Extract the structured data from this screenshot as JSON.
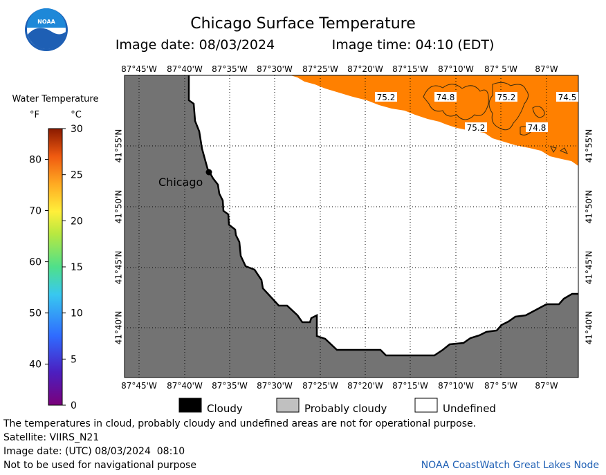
{
  "header": {
    "title": "Chicago Surface Temperature",
    "image_date": "Image date: 08/03/2024",
    "image_time": "Image time: 04:10 (EDT)"
  },
  "logo": {
    "text": "NOAA"
  },
  "colorbar": {
    "title": "Water Temperature",
    "unit_f": "°F",
    "unit_c": "°C",
    "f_ticks": [
      "40",
      "50",
      "60",
      "70",
      "80"
    ],
    "c_ticks": [
      "0",
      "5",
      "10",
      "15",
      "20",
      "25",
      "30"
    ]
  },
  "map": {
    "lon_labels": [
      "87°45'W",
      "87°40'W",
      "87°35'W",
      "87°30'W",
      "87°25'W",
      "87°20'W",
      "87°15'W",
      "87°10'W",
      "87° 5'W",
      "87°W"
    ],
    "lat_labels": [
      "41°55'N",
      "41°50'N",
      "41°45'N",
      "41°40'N"
    ],
    "city_label": "Chicago",
    "sst_labels": [
      "75.2",
      "74.8",
      "75.2",
      "74.5",
      "75.2",
      "74.8"
    ],
    "colors": {
      "land": "#737373",
      "water": "#ffffff",
      "sst_fill": "#ff8000",
      "cloud": "#000000",
      "probably_cloudy": "#c0c0c0"
    }
  },
  "legend": {
    "cloudy": "Cloudy",
    "probably_cloudy": "Probably cloudy",
    "undefined": "Undefined"
  },
  "footer": {
    "disclaimer": "The temperatures in cloud, probably cloudy and undefined areas are not for operational purpose.",
    "satellite": "Satellite: VIIRS_N21",
    "utc_date": "Image date: (UTC) 08/03/2024  08:10",
    "nav_warning": "Not to be used for navigational purpose",
    "credit": "NOAA CoastWatch Great Lakes Node"
  }
}
